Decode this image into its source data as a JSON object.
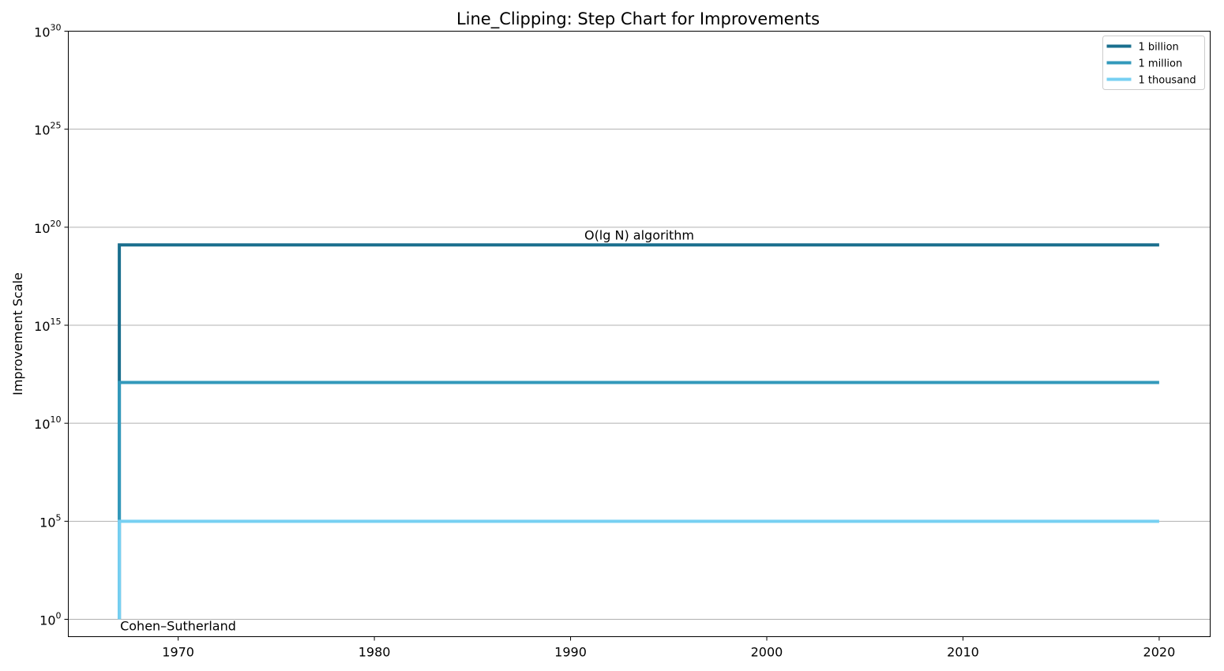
{
  "chart_data": {
    "type": "line",
    "step": true,
    "title": "Line_Clipping: Step Chart for Improvements",
    "xlabel": "",
    "ylabel": "Improvement Scale",
    "yscale": "log",
    "ylim": [
      1,
      1e+30
    ],
    "xlim": [
      1964.4,
      2022.6
    ],
    "x_ticks": [
      1970,
      1980,
      1990,
      2000,
      2010,
      2020
    ],
    "y_ticks": [
      {
        "base": "10",
        "exp": "0",
        "value": 1
      },
      {
        "base": "10",
        "exp": "5",
        "value": 100000.0
      },
      {
        "base": "10",
        "exp": "10",
        "value": 10000000000.0
      },
      {
        "base": "10",
        "exp": "15",
        "value": 1000000000000000.0
      },
      {
        "base": "10",
        "exp": "20",
        "value": 1e+20
      },
      {
        "base": "10",
        "exp": "25",
        "value": 1e+25
      },
      {
        "base": "10",
        "exp": "30",
        "value": 1e+30
      }
    ],
    "grid": "y",
    "legend_position": "top-right",
    "series": [
      {
        "name": "1 billion",
        "color": "#1a6f8e",
        "points": [
          [
            1967,
            1
          ],
          [
            1967,
            1.25e+19
          ],
          [
            2020,
            1.25e+19
          ]
        ]
      },
      {
        "name": "1 million",
        "color": "#3399bb",
        "points": [
          [
            1967,
            1
          ],
          [
            1967,
            1200000000000.0
          ],
          [
            2020,
            1200000000000.0
          ]
        ]
      },
      {
        "name": "1 thousand",
        "color": "#77d0f2",
        "points": [
          [
            1967,
            1
          ],
          [
            1967,
            100000.0
          ],
          [
            2020,
            100000.0
          ]
        ]
      }
    ],
    "annotations": [
      {
        "text": "Cohen–Sutherland",
        "x": 1967,
        "y": 1,
        "anchor": "start",
        "valign": "below"
      },
      {
        "text": "O(lg N) algorithm",
        "x": 1993.5,
        "y": 1.25e+19,
        "anchor": "middle",
        "valign": "above"
      }
    ]
  }
}
